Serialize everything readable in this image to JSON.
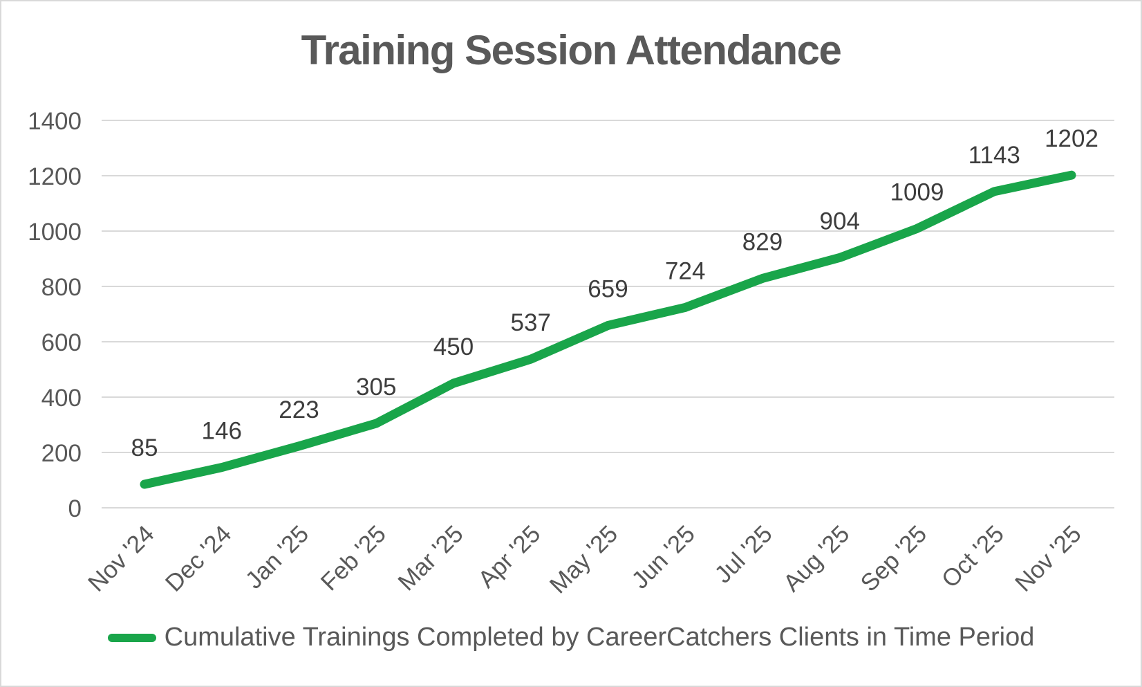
{
  "chart_data": {
    "type": "line",
    "title": "Training Session Attendance",
    "categories": [
      "Nov '24",
      "Dec '24",
      "Jan '25",
      "Feb '25",
      "Mar '25",
      "Apr '25",
      "May '25",
      "Jun '25",
      "Jul '25",
      "Aug '25",
      "Sep '25",
      "Oct '25",
      "Nov '25"
    ],
    "series": [
      {
        "name": "Cumulative Trainings Completed by CareerCatchers Clients in Time Period",
        "values": [
          85,
          146,
          223,
          305,
          450,
          537,
          659,
          724,
          829,
          904,
          1009,
          1143,
          1202
        ]
      }
    ],
    "xlabel": "",
    "ylabel": "",
    "ylim": [
      0,
      1400
    ],
    "ytick_step": 200,
    "grid": true,
    "data_labels": true,
    "legend_position": "bottom"
  },
  "colors": {
    "series_line": "#19a54a",
    "gridline": "#d9d9d9",
    "axis_text": "#595959",
    "data_label_text": "#3d3d3d",
    "title_text": "#595959",
    "frame_border": "#d9d9d9",
    "background": "#ffffff"
  }
}
